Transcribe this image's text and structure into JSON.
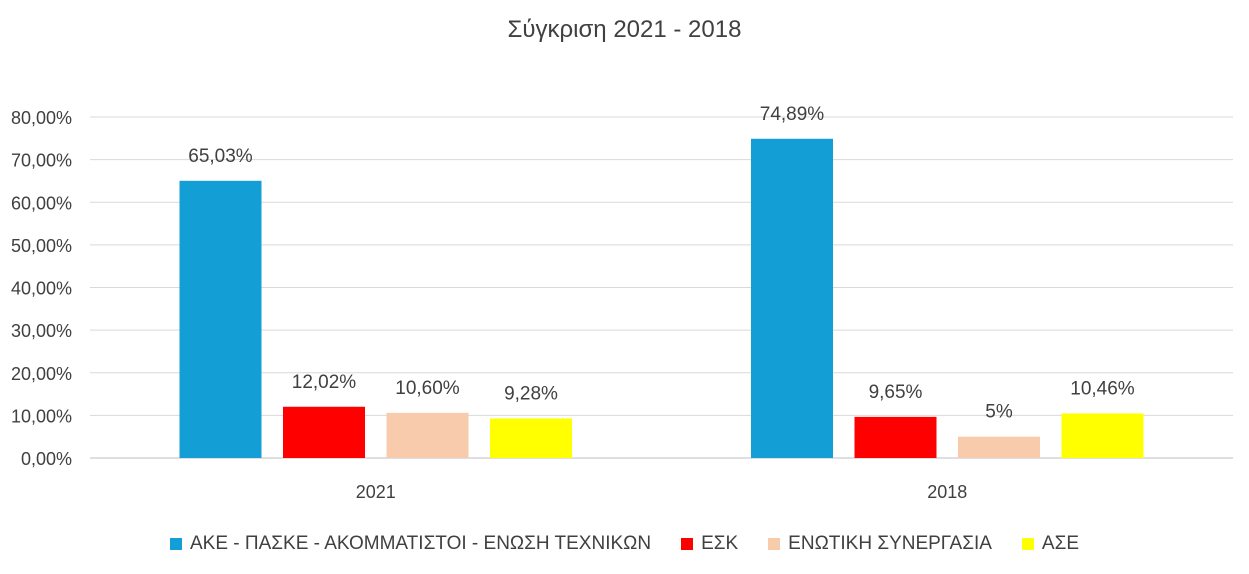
{
  "chart_data": {
    "type": "bar",
    "title": "Σύγκριση 2021 - 2018",
    "xlabel": "",
    "ylabel": "",
    "categories": [
      "2021",
      "2018"
    ],
    "ylim": [
      0,
      80
    ],
    "yticks": [
      "0,00%",
      "10,00%",
      "20,00%",
      "30,00%",
      "40,00%",
      "50,00%",
      "60,00%",
      "70,00%",
      "80,00%"
    ],
    "grid": true,
    "legend_position": "bottom",
    "series": [
      {
        "name": "ΑΚΕ - ΠΑΣΚΕ - ΑΚΟΜΜΑΤΙΣΤΟΙ - ΕΝΩΣΗ ΤΕΧΝΙΚΩΝ",
        "color": "#139FD6",
        "values": [
          65.03,
          74.89
        ],
        "labels": [
          "65,03%",
          "74,89%"
        ]
      },
      {
        "name": "ΕΣΚ",
        "color": "#FF0000",
        "values": [
          12.02,
          9.65
        ],
        "labels": [
          "12,02%",
          "9,65%"
        ]
      },
      {
        "name": "ΕΝΩΤΙΚΗ ΣΥΝΕΡΓΑΣΙΑ",
        "color": "#F8CBAD",
        "values": [
          10.6,
          5
        ],
        "labels": [
          "10,60%",
          "5%"
        ]
      },
      {
        "name": "ΑΣΕ",
        "color": "#FFFF00",
        "values": [
          9.28,
          10.46
        ],
        "labels": [
          "9,28%",
          "10,46%"
        ]
      }
    ]
  }
}
